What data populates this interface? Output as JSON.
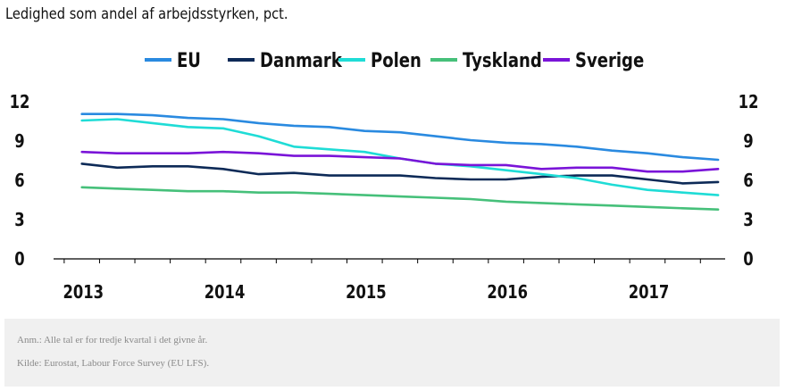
{
  "chart_data": {
    "type": "line",
    "title": "Ledighed som andel af arbejdsstyrken, pct.",
    "x_tick_labels": [
      "2013",
      "2014",
      "2015",
      "2016",
      "2017"
    ],
    "y_tick_labels": [
      "0",
      "3",
      "6",
      "9",
      "12"
    ],
    "ylim": [
      0,
      12
    ],
    "xlim": [
      2012.8,
      2017.55
    ],
    "grid": false,
    "legend_position": "top",
    "x": [
      2013.0,
      2013.25,
      2013.5,
      2013.75,
      2014.0,
      2014.25,
      2014.5,
      2014.75,
      2015.0,
      2015.25,
      2015.5,
      2015.75,
      2016.0,
      2016.25,
      2016.5,
      2016.75,
      2017.0,
      2017.25,
      2017.5
    ],
    "series": [
      {
        "name": "EU",
        "color": "#2a8ae0",
        "values": [
          11.0,
          11.0,
          10.9,
          10.7,
          10.6,
          10.3,
          10.1,
          10.0,
          9.7,
          9.6,
          9.3,
          9.0,
          8.8,
          8.7,
          8.5,
          8.2,
          8.0,
          7.7,
          7.5
        ]
      },
      {
        "name": "Danmark",
        "color": "#0d2a57",
        "values": [
          7.2,
          6.9,
          7.0,
          7.0,
          6.8,
          6.4,
          6.5,
          6.3,
          6.3,
          6.3,
          6.1,
          6.0,
          6.0,
          6.2,
          6.3,
          6.3,
          6.0,
          5.7,
          5.8
        ]
      },
      {
        "name": "Polen",
        "color": "#1fdcd6",
        "values": [
          10.5,
          10.6,
          10.3,
          10.0,
          9.9,
          9.3,
          8.5,
          8.3,
          8.1,
          7.6,
          7.2,
          7.0,
          6.7,
          6.4,
          6.1,
          5.6,
          5.2,
          5.0,
          4.8
        ]
      },
      {
        "name": "Tyskland",
        "color": "#46c07a",
        "values": [
          5.4,
          5.3,
          5.2,
          5.1,
          5.1,
          5.0,
          5.0,
          4.9,
          4.8,
          4.7,
          4.6,
          4.5,
          4.3,
          4.2,
          4.1,
          4.0,
          3.9,
          3.8,
          3.7
        ]
      },
      {
        "name": "Sverige",
        "color": "#7a14d8",
        "values": [
          8.1,
          8.0,
          8.0,
          8.0,
          8.1,
          8.0,
          7.8,
          7.8,
          7.7,
          7.6,
          7.2,
          7.1,
          7.1,
          6.8,
          6.9,
          6.9,
          6.6,
          6.6,
          6.8
        ]
      }
    ]
  },
  "footnote": {
    "note": "Anm.: Alle tal er for tredje kvartal i det givne år.",
    "source": "Kilde: Eurostat, Labour Force Survey (EU LFS)."
  }
}
